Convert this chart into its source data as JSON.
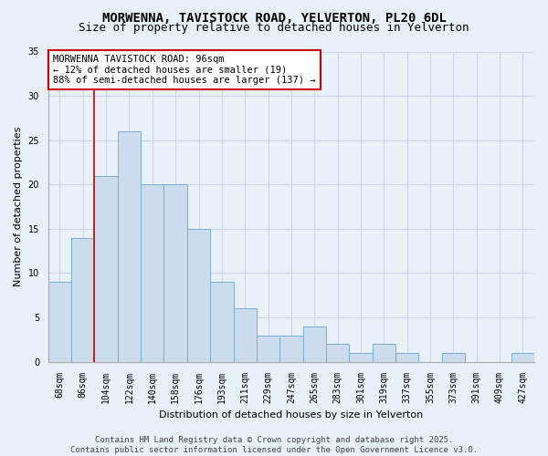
{
  "title": "MORWENNA, TAVISTOCK ROAD, YELVERTON, PL20 6DL",
  "subtitle": "Size of property relative to detached houses in Yelverton",
  "xlabel": "Distribution of detached houses by size in Yelverton",
  "ylabel": "Number of detached properties",
  "categories": [
    "68sqm",
    "86sqm",
    "104sqm",
    "122sqm",
    "140sqm",
    "158sqm",
    "176sqm",
    "193sqm",
    "211sqm",
    "229sqm",
    "247sqm",
    "265sqm",
    "283sqm",
    "301sqm",
    "319sqm",
    "337sqm",
    "355sqm",
    "373sqm",
    "391sqm",
    "409sqm",
    "427sqm"
  ],
  "values": [
    9,
    14,
    21,
    26,
    20,
    20,
    15,
    9,
    6,
    3,
    3,
    4,
    2,
    1,
    2,
    1,
    0,
    1,
    0,
    0,
    1
  ],
  "bar_color": "#ccdcee",
  "bar_edge_color": "#7aaed0",
  "highlight_bar_index": 1,
  "red_line_x": 1.5,
  "annotation_box_text": "MORWENNA TAVISTOCK ROAD: 96sqm\n← 12% of detached houses are smaller (19)\n88% of semi-detached houses are larger (137) →",
  "annotation_box_facecolor": "#ffffff",
  "annotation_box_edgecolor": "#cc0000",
  "ylim": [
    0,
    35
  ],
  "yticks": [
    0,
    5,
    10,
    15,
    20,
    25,
    30,
    35
  ],
  "background_color": "#e8f0f8",
  "plot_bg_color": "#e8f0f8",
  "grid_color": "#c8d8e8",
  "footer_text": "Contains HM Land Registry data © Crown copyright and database right 2025.\nContains public sector information licensed under the Open Government Licence v3.0.",
  "title_fontsize": 10,
  "subtitle_fontsize": 9,
  "ylabel_fontsize": 8,
  "xlabel_fontsize": 8,
  "tick_fontsize": 7,
  "annotation_fontsize": 7.5,
  "footer_fontsize": 6.5
}
